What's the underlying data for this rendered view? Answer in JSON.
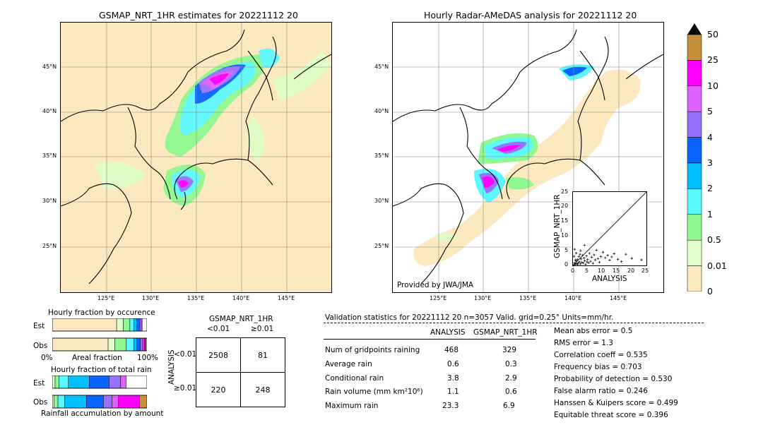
{
  "left_map": {
    "title": "GSMAP_NRT_1HR estimates for 20221112 20",
    "lat_ticks": [
      "45°N",
      "40°N",
      "35°N",
      "30°N",
      "25°N"
    ],
    "lon_ticks": [
      "125°E",
      "130°E",
      "135°E",
      "140°E",
      "145°E"
    ]
  },
  "right_map": {
    "title": "Hourly Radar-AMeDAS analysis for 20221112 20",
    "lat_ticks": [
      "45°N",
      "40°N",
      "35°N",
      "30°N",
      "25°N"
    ],
    "lon_ticks": [
      "125°E",
      "130°E",
      "135°E",
      "140°E",
      "145°E"
    ],
    "provider": "Provided by JWA/JMA"
  },
  "colorbar": {
    "labels": [
      "50",
      "25",
      "10",
      "5",
      "4",
      "3",
      "2",
      "1",
      "0.5",
      "0.01",
      "0"
    ],
    "colors": [
      "#c6903a",
      "#ff00ff",
      "#e060ff",
      "#9a70ff",
      "#0a64ff",
      "#00c0ff",
      "#5cf8ff",
      "#90f890",
      "#e0ffc8",
      "#fde9bf"
    ]
  },
  "occurrence": {
    "title": "Hourly fraction by occurence",
    "row_est": "Est",
    "row_obs": "Obs",
    "axis_left": "0%",
    "axis_mid": "Areal fraction",
    "axis_right": "100%"
  },
  "total_rain": {
    "title": "Hourly fraction of total rain",
    "row_est": "Est",
    "row_obs": "Obs",
    "axis_label": "Rainfall accumulation by amount"
  },
  "contingency": {
    "title": "GSMAP_NRT_1HR",
    "col_lt": "<0.01",
    "col_ge": "≥0.01",
    "row_axis": "ANALYSIS",
    "row_lt": "<0.01",
    "row_ge": "≥0.01",
    "cells": [
      [
        "2508",
        "81"
      ],
      [
        "220",
        "248"
      ]
    ]
  },
  "validation": {
    "header": "Validation statistics for 20221112 20  n=3057 Valid. grid=0.25° Units=mm/hr.",
    "col_analysis": "ANALYSIS",
    "col_gsmap": "GSMAP_NRT_1HR",
    "rows": [
      {
        "label": "Num of gridpoints raining",
        "analysis": "468",
        "gsmap": "329"
      },
      {
        "label": "Average rain",
        "analysis": "0.6",
        "gsmap": "0.3"
      },
      {
        "label": "Conditional rain",
        "analysis": "3.8",
        "gsmap": "2.9"
      },
      {
        "label": "Rain volume (mm km²10⁶)",
        "analysis": "1.1",
        "gsmap": "0.6"
      },
      {
        "label": "Maximum rain",
        "analysis": "23.3",
        "gsmap": "6.9"
      }
    ],
    "scores": [
      "Mean abs error =    0.5",
      "RMS error =    1.3",
      "Correlation coeff =  0.535",
      "Frequency bias =  0.703",
      "Probability of detection =  0.530",
      "False alarm ratio =  0.246",
      "Hanssen & Kuipers score =  0.499",
      "Equitable threat score =  0.396"
    ]
  },
  "chart_data": [
    {
      "type": "scatter",
      "xlabel": "ANALYSIS",
      "ylabel": "GSMAP_NRT_1HR",
      "xlim": [
        0,
        25
      ],
      "ylim": [
        0,
        25
      ],
      "x_ticks": [
        "0",
        "5",
        "10",
        "15",
        "20",
        "25"
      ],
      "y_ticks": [
        "0",
        "5",
        "10",
        "15",
        "20",
        "25"
      ],
      "points": [
        [
          0.3,
          0.2
        ],
        [
          0.5,
          0.8
        ],
        [
          0.8,
          0.4
        ],
        [
          1.0,
          1.5
        ],
        [
          1.2,
          0.6
        ],
        [
          1.5,
          2.0
        ],
        [
          1.8,
          0.9
        ],
        [
          2.0,
          3.0
        ],
        [
          2.2,
          1.2
        ],
        [
          2.5,
          0.5
        ],
        [
          2.8,
          2.2
        ],
        [
          3.0,
          1.0
        ],
        [
          3.3,
          3.5
        ],
        [
          3.5,
          0.8
        ],
        [
          3.8,
          2.5
        ],
        [
          4.0,
          1.6
        ],
        [
          4.3,
          0.4
        ],
        [
          4.6,
          3.2
        ],
        [
          5.0,
          2.0
        ],
        [
          5.3,
          0.9
        ],
        [
          5.6,
          4.1
        ],
        [
          6.0,
          1.4
        ],
        [
          6.4,
          2.8
        ],
        [
          6.8,
          0.7
        ],
        [
          7.2,
          3.6
        ],
        [
          7.6,
          1.9
        ],
        [
          8.0,
          5.2
        ],
        [
          8.5,
          2.3
        ],
        [
          9.0,
          1.1
        ],
        [
          9.5,
          3.0
        ],
        [
          10.2,
          4.5
        ],
        [
          11.0,
          2.6
        ],
        [
          11.8,
          3.4
        ],
        [
          12.5,
          1.8
        ],
        [
          13.2,
          2.9
        ],
        [
          14.0,
          4.0
        ],
        [
          15.3,
          2.1
        ],
        [
          16.5,
          1.3
        ],
        [
          18.0,
          3.8
        ],
        [
          20.0,
          2.4
        ],
        [
          23.3,
          1.9
        ],
        [
          0.6,
          5.5
        ],
        [
          1.1,
          4.2
        ],
        [
          0.4,
          3.1
        ],
        [
          2.6,
          5.0
        ],
        [
          3.9,
          6.9
        ],
        [
          1.6,
          0.3
        ],
        [
          0.9,
          1.9
        ],
        [
          2.4,
          3.8
        ],
        [
          4.8,
          1.2
        ]
      ]
    },
    {
      "type": "bar",
      "title": "Hourly fraction by occurence",
      "categories": [
        "Est",
        "Obs"
      ],
      "series": [
        {
          "values": [
            0.68,
            0.59
          ]
        },
        {
          "values": [
            0.07,
            0.07
          ]
        },
        {
          "values": [
            0.07,
            0.12
          ]
        },
        {
          "values": [
            0.04,
            0.08
          ]
        },
        {
          "values": [
            0.03,
            0.03
          ]
        },
        {
          "values": [
            0.03,
            0.04
          ]
        },
        {
          "values": [
            0.02,
            0.02
          ]
        },
        {
          "values": [
            0.01,
            0.02
          ]
        },
        {
          "values": [
            0.0,
            0.01
          ]
        },
        {
          "values": [
            0.0,
            0.01
          ]
        }
      ]
    },
    {
      "type": "bar",
      "title": "Hourly fraction of total rain",
      "categories": [
        "Est",
        "Obs"
      ],
      "series": [
        {
          "values": [
            0.03,
            0.02
          ]
        },
        {
          "values": [
            0.04,
            0.04
          ]
        },
        {
          "values": [
            0.1,
            0.07
          ]
        },
        {
          "values": [
            0.22,
            0.23
          ]
        },
        {
          "values": [
            0.21,
            0.18
          ]
        },
        {
          "values": [
            0.12,
            0.09
          ]
        },
        {
          "values": [
            0.06,
            0.07
          ]
        },
        {
          "values": [
            0.0,
            0.22
          ]
        },
        {
          "values": [
            0.0,
            0.1
          ]
        }
      ]
    }
  ]
}
